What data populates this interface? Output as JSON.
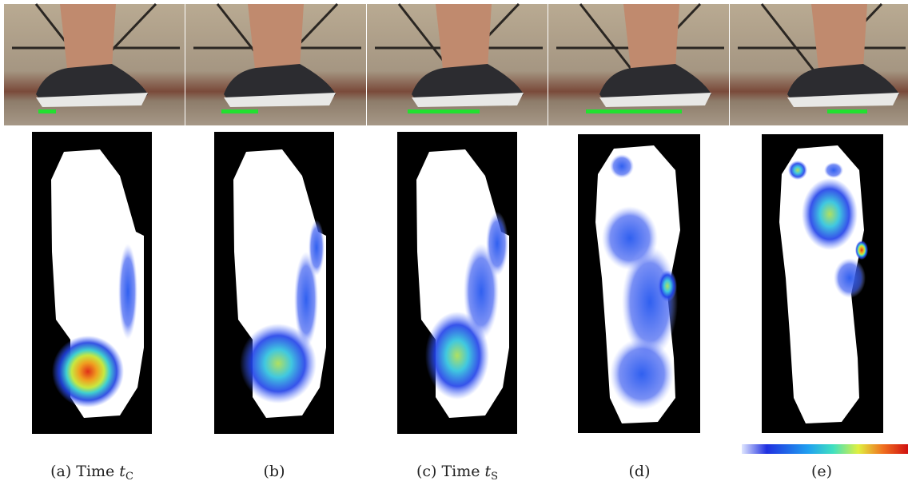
{
  "figure": {
    "captions": [
      {
        "label": "(a) Time",
        "var": "t",
        "sub": "C"
      },
      {
        "label": "(b)"
      },
      {
        "label": "(c) Time",
        "var": "t",
        "sub": "S"
      },
      {
        "label": "(d)"
      },
      {
        "label": "(e)"
      }
    ]
  }
}
